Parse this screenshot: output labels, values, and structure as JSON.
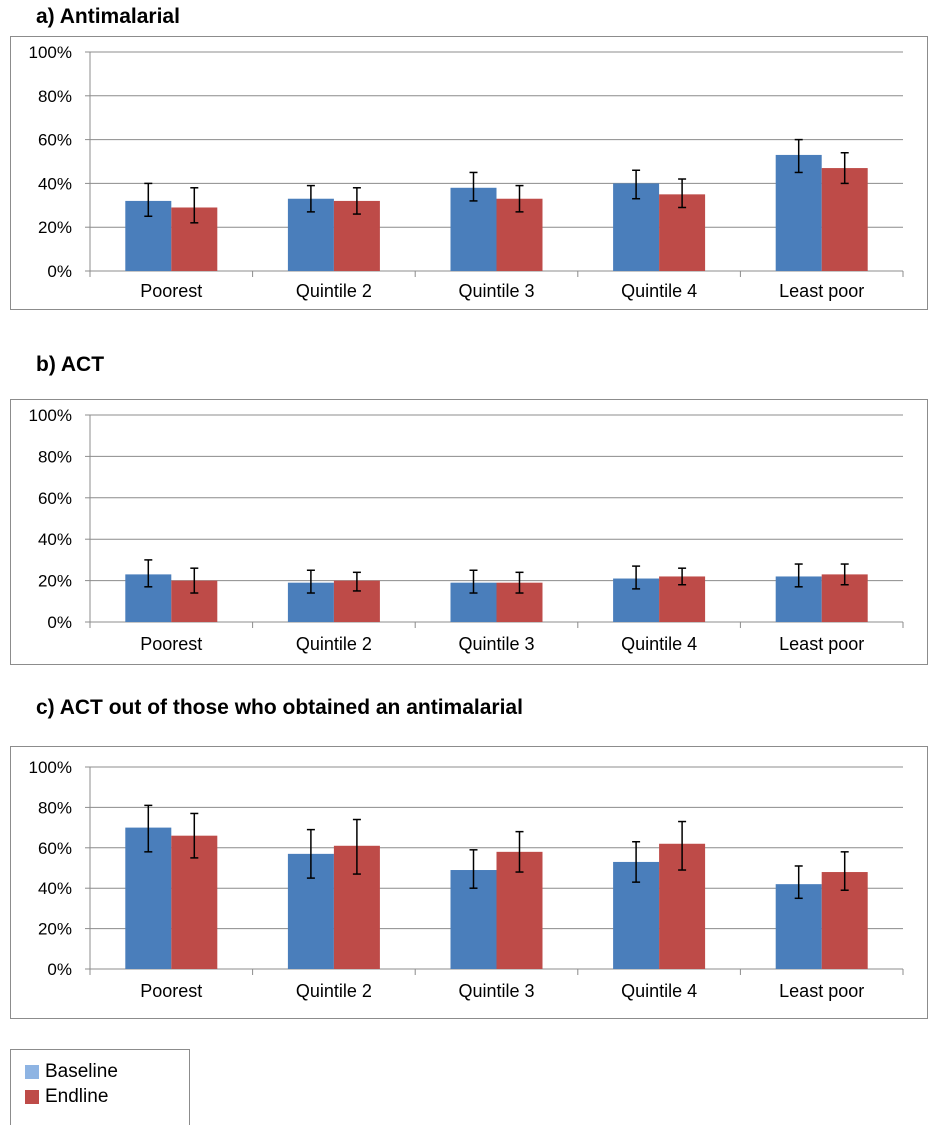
{
  "colors": {
    "baseline": "#4a7ebb",
    "endline": "#be4b48",
    "legend_baseline": "#8eb4e3",
    "grid": "#8c8c8c"
  },
  "legend": {
    "items": [
      "Baseline",
      "Endline"
    ]
  },
  "chart_data": [
    {
      "type": "bar",
      "title": "a)  Antimalarial",
      "categories": [
        "Poorest",
        "Quintile 2",
        "Quintile 3",
        "Quintile 4",
        "Least poor"
      ],
      "yticks": [
        "0%",
        "20%",
        "40%",
        "60%",
        "80%",
        "100%"
      ],
      "ylim": [
        0,
        100
      ],
      "grid": true,
      "series": [
        {
          "name": "Baseline",
          "values": [
            32,
            33,
            38,
            40,
            53
          ],
          "err_low": [
            25,
            27,
            32,
            33,
            45
          ],
          "err_high": [
            40,
            39,
            45,
            46,
            60
          ]
        },
        {
          "name": "Endline",
          "values": [
            29,
            32,
            33,
            35,
            47
          ],
          "err_low": [
            22,
            26,
            27,
            29,
            40
          ],
          "err_high": [
            38,
            38,
            39,
            42,
            54
          ]
        }
      ]
    },
    {
      "type": "bar",
      "title": "b)  ACT",
      "categories": [
        "Poorest",
        "Quintile 2",
        "Quintile 3",
        "Quintile 4",
        "Least poor"
      ],
      "yticks": [
        "0%",
        "20%",
        "40%",
        "60%",
        "80%",
        "100%"
      ],
      "ylim": [
        0,
        100
      ],
      "grid": true,
      "series": [
        {
          "name": "Baseline",
          "values": [
            23,
            19,
            19,
            21,
            22
          ],
          "err_low": [
            17,
            14,
            14,
            16,
            17
          ],
          "err_high": [
            30,
            25,
            25,
            27,
            28
          ]
        },
        {
          "name": "Endline",
          "values": [
            20,
            20,
            19,
            22,
            23
          ],
          "err_low": [
            14,
            15,
            14,
            18,
            18
          ],
          "err_high": [
            26,
            24,
            24,
            26,
            28
          ]
        }
      ]
    },
    {
      "type": "bar",
      "title": "c)  ACT out of those who obtained an antimalarial",
      "categories": [
        "Poorest",
        "Quintile 2",
        "Quintile 3",
        "Quintile 4",
        "Least poor"
      ],
      "yticks": [
        "0%",
        "20%",
        "40%",
        "60%",
        "80%",
        "100%"
      ],
      "ylim": [
        0,
        100
      ],
      "grid": true,
      "series": [
        {
          "name": "Baseline",
          "values": [
            70,
            57,
            49,
            53,
            42
          ],
          "err_low": [
            58,
            45,
            40,
            43,
            35
          ],
          "err_high": [
            81,
            69,
            59,
            63,
            51
          ]
        },
        {
          "name": "Endline",
          "values": [
            66,
            61,
            58,
            62,
            48
          ],
          "err_low": [
            55,
            47,
            48,
            49,
            39
          ],
          "err_high": [
            77,
            74,
            68,
            73,
            58
          ]
        }
      ]
    }
  ]
}
